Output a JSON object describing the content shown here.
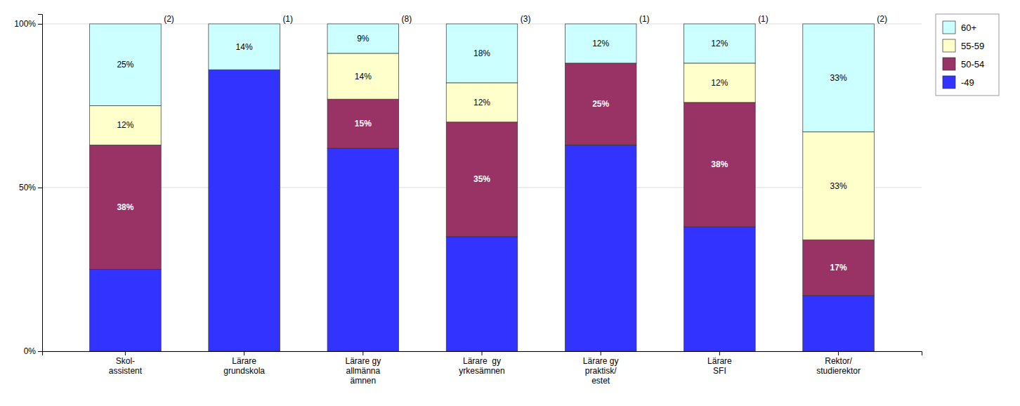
{
  "chart_data": {
    "type": "bar",
    "stacked": true,
    "categories": [
      "Skol-\nassistent",
      "Lärare\ngrundskola",
      "Lärare gy\nallmänna\nämnen",
      "Lärare  gy\nyrkesämnen",
      "Lärare gy\npraktisk/\nestet",
      "Lärare\nSFI",
      "Rektor/\nstudierektor"
    ],
    "series": [
      {
        "name": "-49",
        "color": "#3333FF",
        "values": [
          25,
          86,
          62,
          35,
          63,
          38,
          17
        ]
      },
      {
        "name": "50-54",
        "color": "#993366",
        "values": [
          38,
          0,
          15,
          35,
          25,
          38,
          17
        ],
        "value_labels": [
          "38%",
          null,
          "15%",
          "35%",
          "25%",
          "38%",
          "17%"
        ]
      },
      {
        "name": "55-59",
        "color": "#FFFFCC",
        "values": [
          12,
          0,
          14,
          12,
          0,
          12,
          33
        ],
        "value_labels": [
          "12%",
          null,
          "14%",
          "12%",
          null,
          "12%",
          "33%"
        ]
      },
      {
        "name": "60+",
        "color": "#CCFFFF",
        "values": [
          25,
          14,
          9,
          18,
          12,
          12,
          33
        ],
        "value_labels": [
          "25%",
          "14%",
          "9%",
          "18%",
          "12%",
          "12%",
          "33%"
        ]
      }
    ],
    "counts": [
      2,
      1,
      8,
      3,
      1,
      1,
      2
    ],
    "count_labels": [
      "(2)",
      "(1)",
      "(8)",
      "(3)",
      "(1)",
      "(1)",
      "(2)"
    ],
    "data_labels": true,
    "ylim": [
      0,
      103
    ],
    "yticks": [
      {
        "value": 0,
        "label": "0%"
      },
      {
        "value": 50,
        "label": "50%"
      },
      {
        "value": 100,
        "label": "100%"
      }
    ],
    "grid": true,
    "legend": "upper right"
  }
}
